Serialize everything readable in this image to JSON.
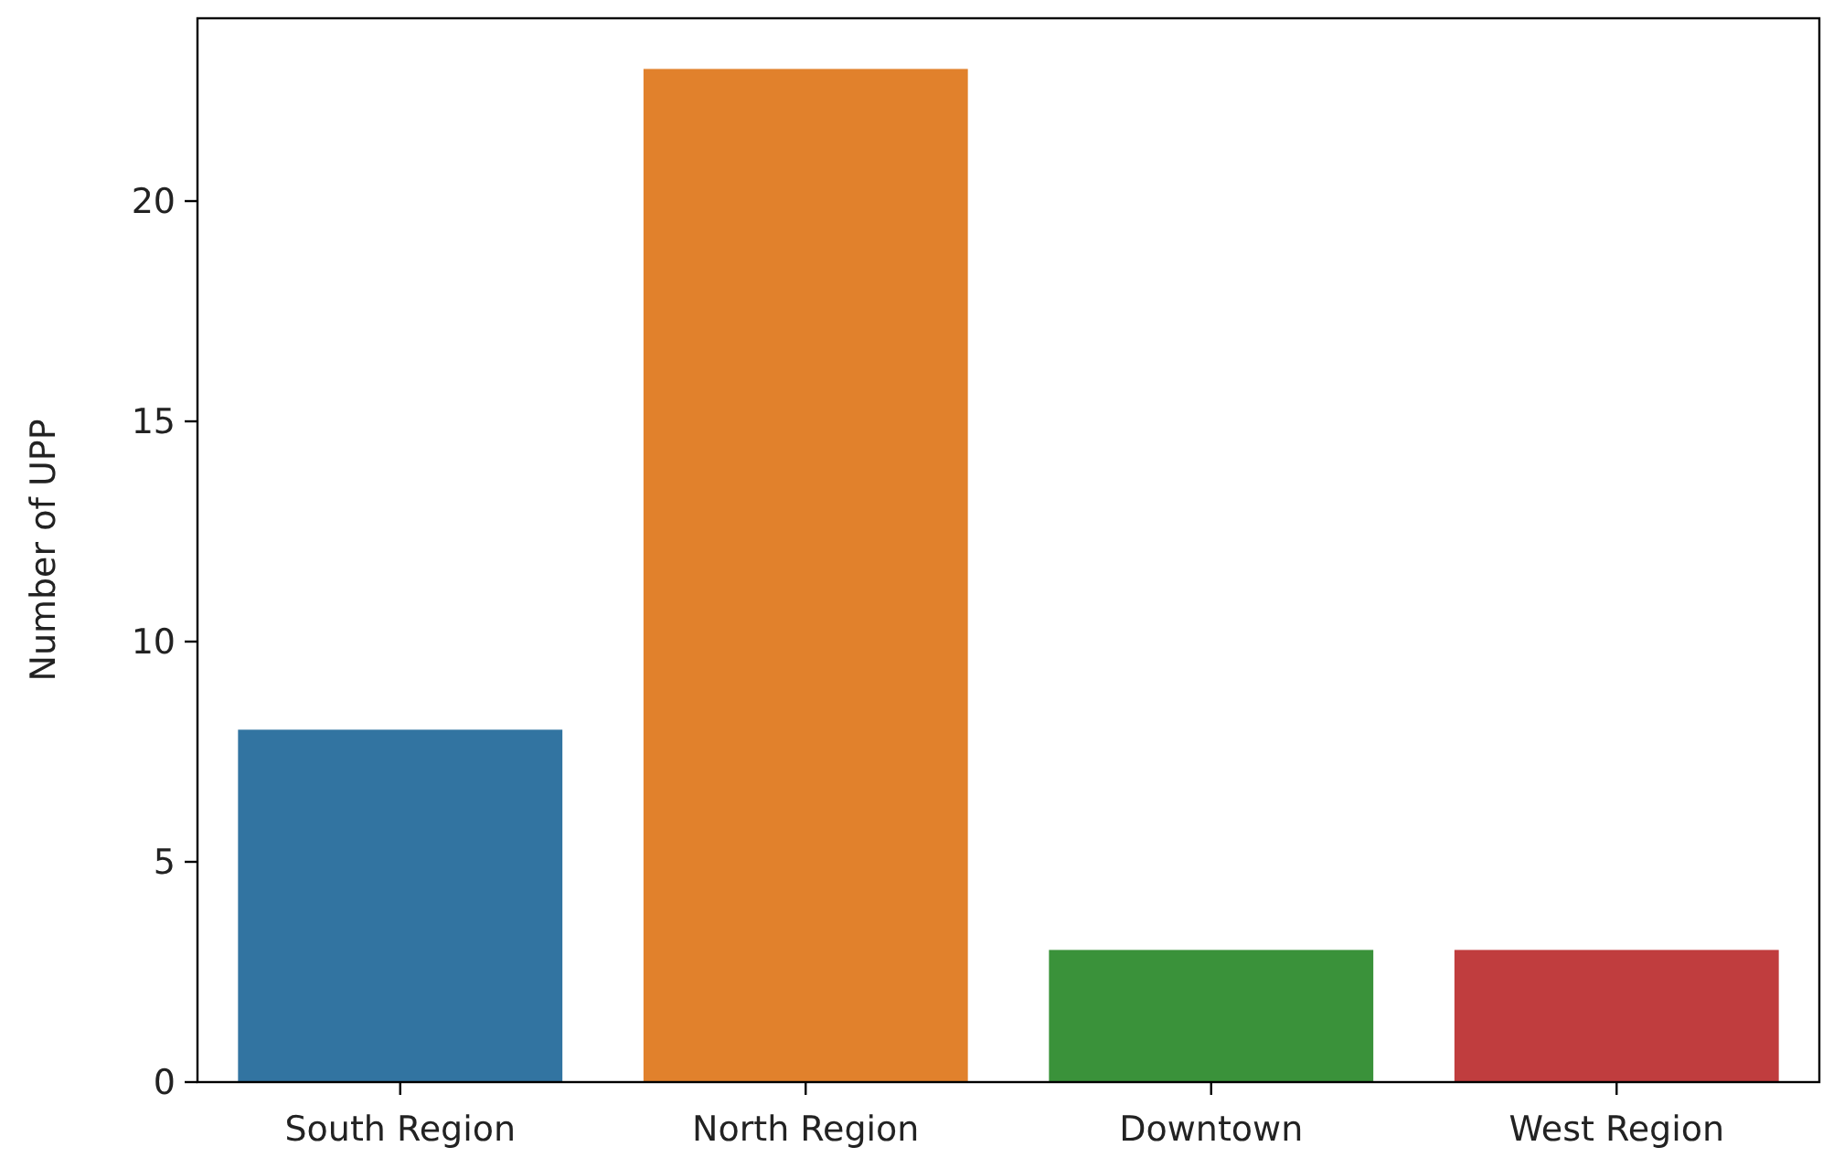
{
  "chart_data": {
    "type": "bar",
    "ylabel": "Number of UPP",
    "categories": [
      "South Region",
      "North Region",
      "Downtown",
      "West Region"
    ],
    "values": [
      8,
      23,
      3,
      3
    ],
    "colors": [
      "#3274a1",
      "#e1812c",
      "#3a923a",
      "#c03d3e"
    ],
    "ylim": [
      0,
      24.15
    ],
    "yticks": [
      0,
      5,
      10,
      15,
      20
    ],
    "grid": false
  }
}
